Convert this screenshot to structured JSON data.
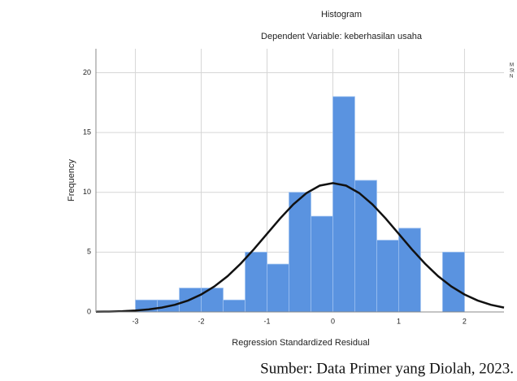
{
  "chart_data": {
    "type": "histogram",
    "title": "Histogram",
    "subtitle": "Dependent Variable: keberhasilan usaha",
    "x_label": "Regression Standardized Residual",
    "y_label": "Frequency",
    "bins": [
      -3,
      -2.667,
      -2.333,
      -2,
      -1.667,
      -1.333,
      -1,
      -0.667,
      -0.333,
      0,
      0.333,
      0.667,
      1,
      1.333,
      1.667,
      2
    ],
    "values": [
      1,
      1,
      2,
      2,
      1,
      5,
      4,
      10,
      8,
      18,
      11,
      6,
      7,
      0,
      5
    ],
    "color": "#5a93e0",
    "normal_curve": {
      "color": "#111111",
      "x": [
        -3.6,
        -3.4,
        -3.2,
        -3.0,
        -2.8,
        -2.6,
        -2.4,
        -2.2,
        -2.0,
        -1.8,
        -1.6,
        -1.4,
        -1.2,
        -1.0,
        -0.8,
        -0.6,
        -0.4,
        -0.2,
        0,
        0.2,
        0.4,
        0.6,
        0.8,
        1.0,
        1.2,
        1.4,
        1.6,
        1.8,
        2.0,
        2.2,
        2.4,
        2.6
      ],
      "y": [
        0.02,
        0.03,
        0.06,
        0.12,
        0.21,
        0.37,
        0.6,
        0.96,
        1.46,
        2.13,
        2.99,
        4.04,
        5.24,
        6.53,
        7.82,
        9.0,
        9.94,
        10.56,
        10.77,
        10.56,
        9.94,
        9.0,
        7.82,
        6.53,
        5.24,
        4.04,
        2.99,
        2.13,
        1.46,
        0.96,
        0.6,
        0.37
      ]
    },
    "xlim": [
      -3.6,
      2.6
    ],
    "xticks": [
      -3,
      -2,
      -1,
      0,
      1,
      2
    ],
    "ylim": [
      0,
      22
    ],
    "yticks": [
      0,
      5,
      10,
      15,
      20
    ],
    "grid": true,
    "stats_fragment": [
      "M",
      "St",
      "N"
    ]
  },
  "caption": "Sumber: Data Primer yang Diolah, 2023."
}
